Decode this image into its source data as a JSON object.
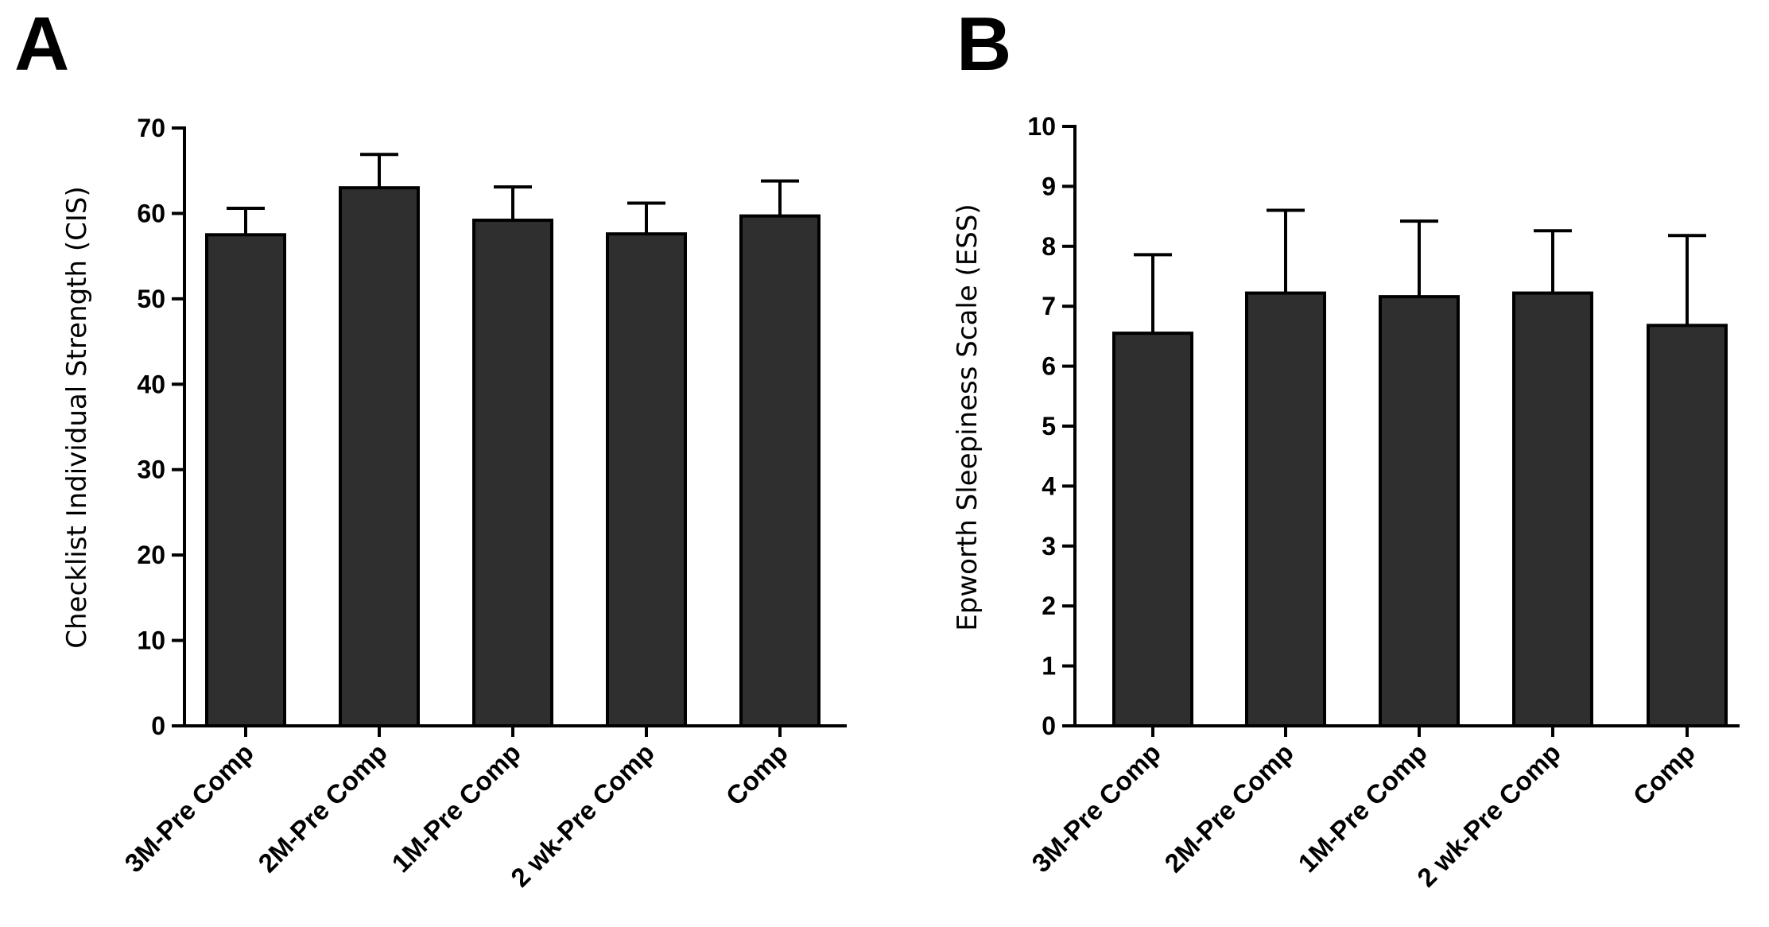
{
  "chart_data": [
    {
      "type": "bar",
      "panel_label": "A",
      "title": "",
      "xlabel": "",
      "ylabel": "Checklist Individual Strength (CIS)",
      "ylim": [
        0,
        70
      ],
      "yticks": [
        0,
        10,
        20,
        30,
        40,
        50,
        60,
        70
      ],
      "categories": [
        "3M-Pre Comp",
        "2M-Pre Comp",
        "1M-Pre Comp",
        "2 wk-Pre Comp",
        "Comp"
      ],
      "values": [
        57.5,
        63.0,
        59.2,
        57.6,
        59.7
      ],
      "errors": [
        3.1,
        3.9,
        3.9,
        3.6,
        4.1
      ],
      "bar_color": "#2f2f2f",
      "grid": false
    },
    {
      "type": "bar",
      "panel_label": "B",
      "title": "",
      "xlabel": "",
      "ylabel": "Epworth Sleepiness Scale (ESS)",
      "ylim": [
        0,
        10
      ],
      "yticks": [
        0,
        1,
        2,
        3,
        4,
        5,
        6,
        7,
        8,
        9,
        10
      ],
      "categories": [
        "3M-Pre Comp",
        "2M-Pre Comp",
        "1M-Pre Comp",
        "2 wk-Pre Comp",
        "Comp"
      ],
      "values": [
        6.55,
        7.22,
        7.16,
        7.22,
        6.68
      ],
      "errors": [
        1.31,
        1.38,
        1.26,
        1.04,
        1.5
      ],
      "bar_color": "#2f2f2f",
      "grid": false
    }
  ]
}
